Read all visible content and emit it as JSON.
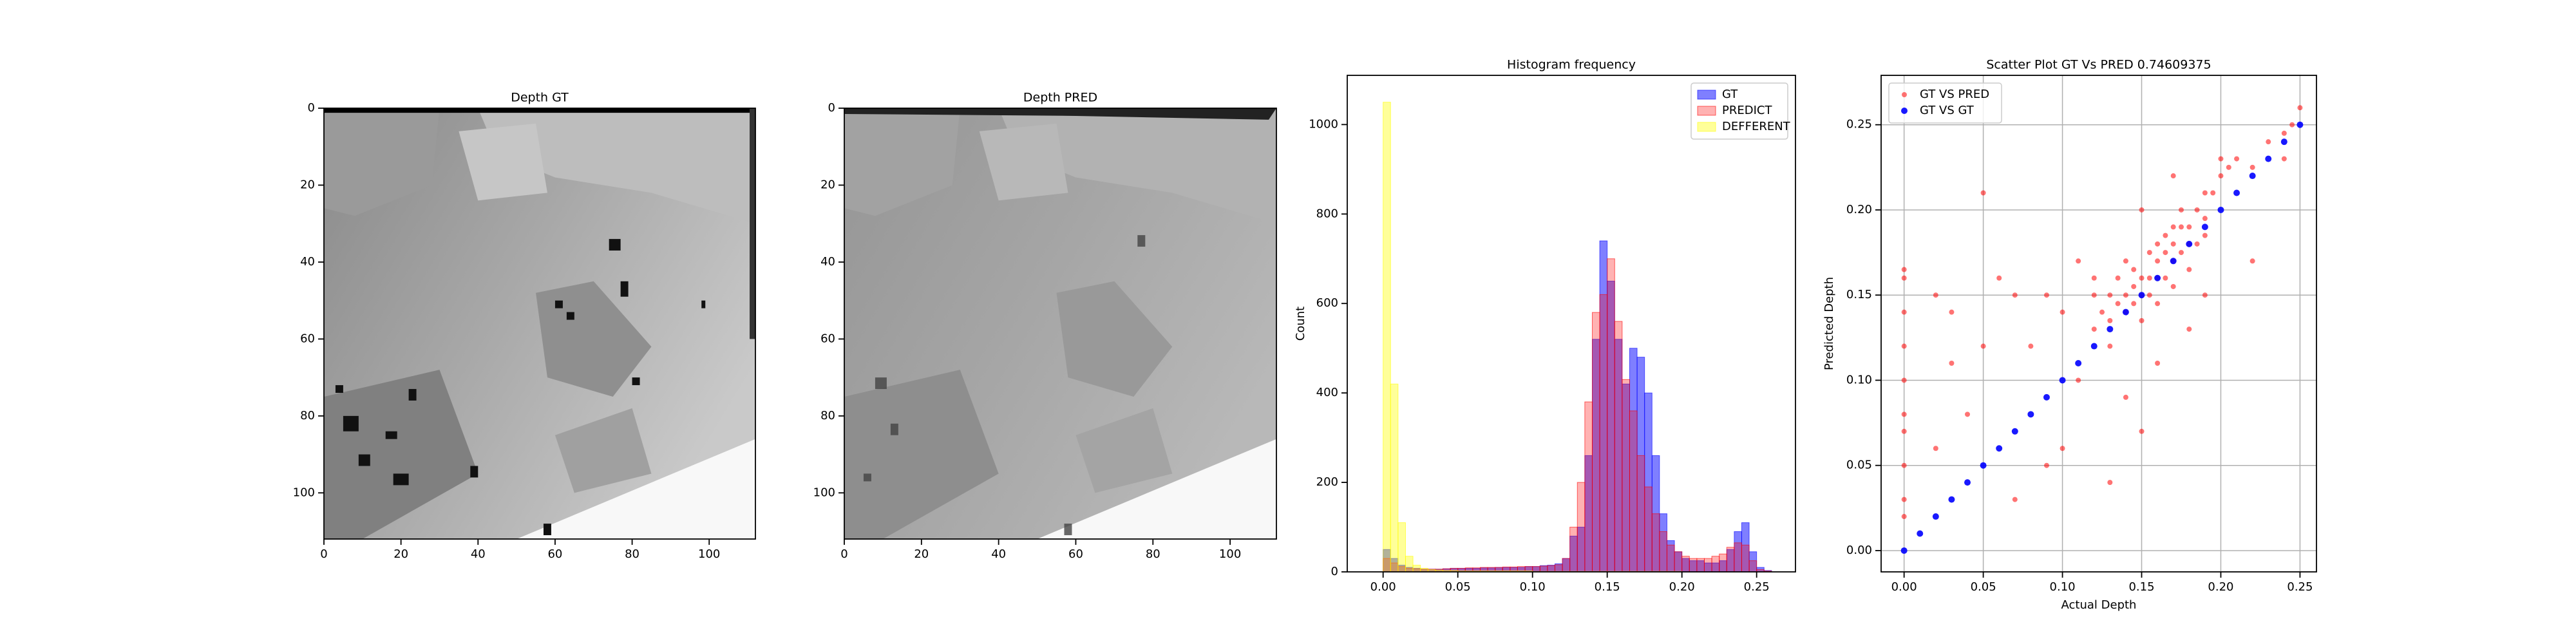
{
  "chart_data": [
    {
      "type": "image",
      "title": "Depth GT",
      "xlim": [
        0,
        112
      ],
      "ylim": [
        112,
        0
      ],
      "xticks": [
        0,
        20,
        40,
        60,
        80,
        100
      ],
      "yticks": [
        0,
        20,
        40,
        60,
        80,
        100
      ]
    },
    {
      "type": "image",
      "title": "Depth PRED",
      "xlim": [
        0,
        112
      ],
      "ylim": [
        112,
        0
      ],
      "xticks": [
        0,
        20,
        40,
        60,
        80,
        100
      ],
      "yticks": [
        0,
        20,
        40,
        60,
        80,
        100
      ]
    },
    {
      "type": "histogram",
      "title": "Histogram frequency",
      "y_label": "Count",
      "xlim": [
        -0.024,
        0.276
      ],
      "ylim": [
        0,
        1110
      ],
      "xticks": [
        {
          "value": 0,
          "label": "0.00"
        },
        0.05,
        {
          "value": 0.1,
          "label": "0.10"
        },
        0.15,
        {
          "value": 0.2,
          "label": "0.20"
        },
        0.25
      ],
      "yticks": [
        0,
        200,
        400,
        600,
        800,
        1000
      ],
      "legend": "upper right",
      "grid": false,
      "bins": [
        0,
        0.005,
        0.01,
        0.015,
        0.02,
        0.025,
        0.03,
        0.035,
        0.04,
        0.045,
        0.05,
        0.055,
        0.06,
        0.065,
        0.07,
        0.075,
        0.08,
        0.085,
        0.09,
        0.095,
        0.1,
        0.105,
        0.11,
        0.115,
        0.12,
        0.125,
        0.13,
        0.135,
        0.14,
        0.145,
        0.15,
        0.155,
        0.16,
        0.165,
        0.17,
        0.175,
        0.18,
        0.185,
        0.19,
        0.195,
        0.2,
        0.205,
        0.21,
        0.215,
        0.22,
        0.225,
        0.23,
        0.235,
        0.24,
        0.245,
        0.25,
        0.255,
        0.26
      ],
      "series": [
        {
          "name": "GT",
          "color": "#0000ff",
          "values": [
            50,
            30,
            15,
            10,
            8,
            6,
            6,
            6,
            7,
            8,
            8,
            8,
            8,
            9,
            9,
            10,
            10,
            10,
            10,
            12,
            12,
            14,
            15,
            18,
            30,
            80,
            100,
            260,
            520,
            740,
            650,
            520,
            420,
            500,
            480,
            400,
            260,
            130,
            70,
            45,
            30,
            25,
            25,
            20,
            20,
            25,
            50,
            90,
            110,
            45,
            10,
            3
          ]
        },
        {
          "name": "PREDICT",
          "color": "#ff0000",
          "values": [
            30,
            20,
            12,
            8,
            7,
            6,
            6,
            6,
            7,
            8,
            8,
            9,
            9,
            10,
            10,
            10,
            11,
            11,
            12,
            12,
            12,
            13,
            14,
            16,
            30,
            100,
            200,
            380,
            580,
            620,
            700,
            560,
            430,
            360,
            260,
            190,
            130,
            90,
            60,
            45,
            35,
            30,
            30,
            30,
            35,
            40,
            55,
            65,
            60,
            25,
            5,
            2
          ]
        },
        {
          "name": "DEFFERENT",
          "color": "#ffff00",
          "values": [
            1050,
            420,
            110,
            35,
            15,
            8,
            5,
            4,
            3,
            3,
            2,
            2,
            2,
            2,
            2,
            2,
            2,
            2,
            2,
            2,
            1,
            1,
            1,
            1,
            1,
            1,
            1,
            1,
            1,
            1,
            1,
            1,
            1,
            1,
            1,
            1,
            1,
            1,
            1,
            1,
            0,
            0,
            0,
            0,
            0,
            0,
            0,
            0,
            0,
            0,
            0,
            0
          ]
        }
      ]
    },
    {
      "type": "scatter",
      "title": "Scatter Plot GT Vs PRED 0.74609375",
      "x_label": "Actual Depth",
      "y_label": "Predicted Depth",
      "xlim": [
        -0.0145,
        0.2604
      ],
      "ylim": [
        -0.0125,
        0.279
      ],
      "xticks": [
        {
          "value": 0,
          "label": "0.00"
        },
        0.05,
        {
          "value": 0.1,
          "label": "0.10"
        },
        0.15,
        {
          "value": 0.2,
          "label": "0.20"
        },
        0.25
      ],
      "yticks": [
        {
          "value": 0,
          "label": "0.00"
        },
        0.05,
        {
          "value": 0.1,
          "label": "0.10"
        },
        0.15,
        {
          "value": 0.2,
          "label": "0.20"
        },
        0.25
      ],
      "legend": "upper left",
      "grid": true,
      "series": [
        {
          "name": "GT VS PRED",
          "color": "#ff0000",
          "x": [
            0,
            0,
            0,
            0,
            0,
            0,
            0,
            0,
            0,
            0,
            0.02,
            0.03,
            0.05,
            0.04,
            0.06,
            0.07,
            0.08,
            0.09,
            0.1,
            0.1,
            0.11,
            0.12,
            0.13,
            0.14,
            0.15,
            0.16,
            0.17,
            0.18,
            0.2,
            0.22,
            0.05,
            0.09,
            0.12,
            0.02,
            0.07,
            0.11,
            0.15,
            0.03,
            0.13,
            0.19,
            0.13,
            0.135,
            0.14,
            0.14,
            0.145,
            0.145,
            0.15,
            0.15,
            0.155,
            0.155,
            0.16,
            0.16,
            0.165,
            0.165,
            0.17,
            0.17,
            0.175,
            0.175,
            0.18,
            0.18,
            0.185,
            0.19,
            0.19,
            0.195,
            0.2,
            0.205,
            0.21,
            0.22,
            0.23,
            0.24,
            0.245,
            0.25,
            0.24,
            0.15,
            0.16,
            0.17,
            0.18,
            0.125,
            0.135,
            0.14,
            0.155,
            0.165,
            0.175,
            0.185,
            0.12,
            0.13,
            0.145,
            0.16,
            0.17,
            0.19
          ],
          "y": [
            0.02,
            0.05,
            0.08,
            0.1,
            0.12,
            0.14,
            0.16,
            0.165,
            0.03,
            0.07,
            0.15,
            0.14,
            0.21,
            0.08,
            0.16,
            0.03,
            0.12,
            0.15,
            0.06,
            0.14,
            0.1,
            0.16,
            0.04,
            0.09,
            0.2,
            0.11,
            0.22,
            0.13,
            0.23,
            0.17,
            0.12,
            0.05,
            0.13,
            0.06,
            0.15,
            0.17,
            0.07,
            0.11,
            0.12,
            0.15,
            0.135,
            0.145,
            0.15,
            0.14,
            0.155,
            0.145,
            0.16,
            0.15,
            0.16,
            0.15,
            0.17,
            0.16,
            0.175,
            0.16,
            0.18,
            0.17,
            0.19,
            0.175,
            0.19,
            0.18,
            0.2,
            0.21,
            0.195,
            0.21,
            0.22,
            0.225,
            0.23,
            0.225,
            0.24,
            0.245,
            0.25,
            0.26,
            0.23,
            0.135,
            0.145,
            0.155,
            0.165,
            0.14,
            0.16,
            0.17,
            0.175,
            0.185,
            0.2,
            0.18,
            0.15,
            0.15,
            0.165,
            0.18,
            0.19,
            0.185
          ]
        },
        {
          "name": "GT VS GT",
          "color": "#0000ff",
          "x": [
            0,
            0.01,
            0.02,
            0.03,
            0.04,
            0.05,
            0.06,
            0.07,
            0.08,
            0.09,
            0.1,
            0.11,
            0.12,
            0.13,
            0.14,
            0.15,
            0.16,
            0.17,
            0.18,
            0.19,
            0.2,
            0.21,
            0.22,
            0.23,
            0.24,
            0.25
          ],
          "y": [
            0,
            0.01,
            0.02,
            0.03,
            0.04,
            0.05,
            0.06,
            0.07,
            0.08,
            0.09,
            0.1,
            0.11,
            0.12,
            0.13,
            0.14,
            0.15,
            0.16,
            0.17,
            0.18,
            0.19,
            0.2,
            0.21,
            0.22,
            0.23,
            0.24,
            0.25
          ]
        }
      ]
    }
  ]
}
